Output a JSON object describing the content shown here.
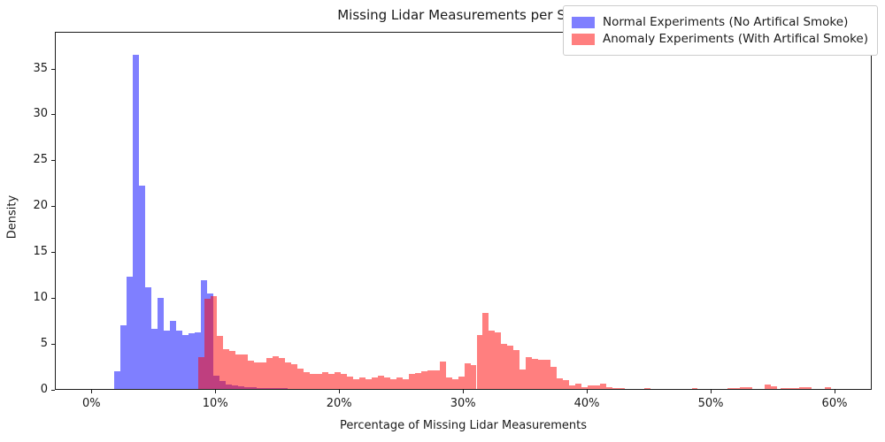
{
  "title": "Missing Lidar Measurements per Scan",
  "chart_data": {
    "type": "bar",
    "subtype": "overlapping-histogram",
    "title": "Missing Lidar Measurements per Scan",
    "xlabel": "Percentage of Missing Lidar Measurements",
    "ylabel": "Density",
    "xlim": [
      -2.95,
      63.0
    ],
    "ylim": [
      0,
      39.0
    ],
    "grid": false,
    "bin_width_pct": 0.5,
    "x_ticks": [
      {
        "value": 0,
        "label": "0%"
      },
      {
        "value": 10,
        "label": "10%"
      },
      {
        "value": 20,
        "label": "20%"
      },
      {
        "value": 30,
        "label": "30%"
      },
      {
        "value": 40,
        "label": "40%"
      },
      {
        "value": 50,
        "label": "50%"
      },
      {
        "value": 60,
        "label": "60%"
      }
    ],
    "y_ticks": [
      {
        "value": 0,
        "label": "0"
      },
      {
        "value": 5,
        "label": "5"
      },
      {
        "value": 10,
        "label": "10"
      },
      {
        "value": 15,
        "label": "15"
      },
      {
        "value": 20,
        "label": "20"
      },
      {
        "value": 25,
        "label": "25"
      },
      {
        "value": 30,
        "label": "30"
      },
      {
        "value": 35,
        "label": "35"
      }
    ],
    "legend": {
      "position": "upper right",
      "entries": [
        {
          "label": "Normal Experiments (No Artifical Smoke)",
          "color": "rgba(0,0,255,0.5)",
          "hex_on_white": "#7f7fff"
        },
        {
          "label": "Anomaly Experiments (With Artifical Smoke)",
          "color": "rgba(255,0,0,0.5)",
          "hex_on_white": "#ff7f7f"
        }
      ]
    },
    "overlap_color_hex": "#bf3f7f",
    "series": [
      {
        "name": "Normal Experiments (No Artifical Smoke)",
        "color": "rgba(0,0,255,0.5)",
        "bins": [
          [
            1.8,
            1.9
          ],
          [
            2.3,
            7.0
          ],
          [
            2.8,
            12.3
          ],
          [
            3.3,
            36.6
          ],
          [
            3.8,
            22.3
          ],
          [
            4.3,
            11.1
          ],
          [
            4.8,
            6.6
          ],
          [
            5.3,
            10.0
          ],
          [
            5.8,
            6.4
          ],
          [
            6.3,
            7.5
          ],
          [
            6.8,
            6.4
          ],
          [
            7.3,
            5.9
          ],
          [
            7.8,
            6.1
          ],
          [
            8.3,
            6.2
          ],
          [
            8.8,
            11.9
          ],
          [
            9.3,
            10.5
          ],
          [
            9.8,
            1.5
          ],
          [
            10.3,
            0.9
          ],
          [
            10.8,
            0.5
          ],
          [
            11.3,
            0.35
          ],
          [
            11.8,
            0.25
          ],
          [
            12.3,
            0.2
          ],
          [
            12.8,
            0.15
          ],
          [
            13.3,
            0.1
          ],
          [
            13.8,
            0.1
          ],
          [
            14.3,
            0.08
          ],
          [
            14.8,
            0.05
          ],
          [
            15.3,
            0.05
          ]
        ]
      },
      {
        "name": "Anomaly Experiments (With Artifical Smoke)",
        "color": "rgba(255,0,0,0.5)",
        "bins": [
          [
            8.6,
            3.5
          ],
          [
            9.1,
            9.9
          ],
          [
            9.6,
            10.2
          ],
          [
            10.1,
            5.8
          ],
          [
            10.6,
            4.4
          ],
          [
            11.1,
            4.2
          ],
          [
            11.6,
            3.8
          ],
          [
            12.1,
            3.8
          ],
          [
            12.6,
            3.1
          ],
          [
            13.1,
            2.9
          ],
          [
            13.6,
            2.9
          ],
          [
            14.1,
            3.4
          ],
          [
            14.6,
            3.6
          ],
          [
            15.1,
            3.4
          ],
          [
            15.6,
            2.9
          ],
          [
            16.1,
            2.7
          ],
          [
            16.6,
            2.2
          ],
          [
            17.1,
            1.8
          ],
          [
            17.6,
            1.6
          ],
          [
            18.1,
            1.6
          ],
          [
            18.6,
            1.8
          ],
          [
            19.1,
            1.6
          ],
          [
            19.6,
            1.8
          ],
          [
            20.1,
            1.6
          ],
          [
            20.6,
            1.4
          ],
          [
            21.1,
            1.1
          ],
          [
            21.6,
            1.3
          ],
          [
            22.1,
            1.1
          ],
          [
            22.6,
            1.3
          ],
          [
            23.1,
            1.5
          ],
          [
            23.6,
            1.3
          ],
          [
            24.1,
            1.1
          ],
          [
            24.6,
            1.3
          ],
          [
            25.1,
            1.1
          ],
          [
            25.6,
            1.6
          ],
          [
            26.1,
            1.7
          ],
          [
            26.6,
            1.9
          ],
          [
            27.1,
            2.0
          ],
          [
            27.6,
            2.0
          ],
          [
            28.1,
            3.0
          ],
          [
            28.6,
            1.3
          ],
          [
            29.1,
            1.1
          ],
          [
            29.6,
            1.35
          ],
          [
            30.1,
            2.8
          ],
          [
            30.6,
            2.6
          ],
          [
            31.1,
            5.9
          ],
          [
            31.6,
            8.3
          ],
          [
            32.1,
            6.4
          ],
          [
            32.6,
            6.2
          ],
          [
            33.1,
            4.9
          ],
          [
            33.6,
            4.7
          ],
          [
            34.1,
            4.3
          ],
          [
            34.6,
            2.1
          ],
          [
            35.1,
            3.5
          ],
          [
            35.6,
            3.3
          ],
          [
            36.1,
            3.2
          ],
          [
            36.6,
            3.2
          ],
          [
            37.1,
            2.4
          ],
          [
            37.6,
            1.2
          ],
          [
            38.1,
            1.0
          ],
          [
            38.6,
            0.35
          ],
          [
            39.1,
            0.55
          ],
          [
            39.6,
            0.2
          ],
          [
            40.1,
            0.35
          ],
          [
            40.6,
            0.35
          ],
          [
            41.1,
            0.6
          ],
          [
            41.6,
            0.2
          ],
          [
            42.1,
            0.1
          ],
          [
            42.6,
            0.07
          ],
          [
            44.7,
            0.08
          ],
          [
            48.5,
            0.07
          ],
          [
            51.4,
            0.12
          ],
          [
            51.9,
            0.12
          ],
          [
            52.4,
            0.15
          ],
          [
            52.9,
            0.15
          ],
          [
            54.4,
            0.45
          ],
          [
            54.9,
            0.3
          ],
          [
            55.7,
            0.1
          ],
          [
            56.2,
            0.1
          ],
          [
            56.7,
            0.1
          ],
          [
            57.2,
            0.15
          ],
          [
            57.7,
            0.15
          ],
          [
            59.3,
            0.2
          ]
        ]
      }
    ]
  }
}
